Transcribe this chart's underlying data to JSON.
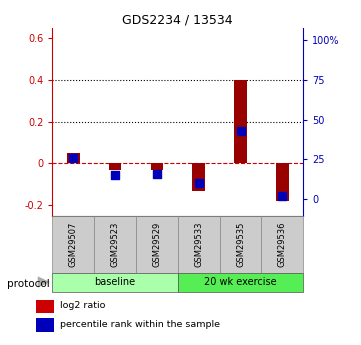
{
  "title": "GDS2234 / 13534",
  "samples": [
    "GSM29507",
    "GSM29523",
    "GSM29529",
    "GSM29533",
    "GSM29535",
    "GSM29536"
  ],
  "log2_ratio": [
    0.05,
    -0.03,
    -0.03,
    -0.13,
    0.4,
    -0.18
  ],
  "percentile_rank_pct": [
    26,
    15,
    16,
    10,
    43,
    2
  ],
  "ylim_left": [
    -0.25,
    0.65
  ],
  "ylim_right": [
    -10.4,
    108
  ],
  "yticks_left": [
    -0.2,
    0.0,
    0.2,
    0.4,
    0.6
  ],
  "yticks_left_labels": [
    "-0.2",
    "0",
    "0.2",
    "0.4",
    "0.6"
  ],
  "yticks_right": [
    0,
    25,
    50,
    75,
    100
  ],
  "yticks_right_labels": [
    "0",
    "25",
    "50",
    "75",
    "100%"
  ],
  "hlines": [
    0.2,
    0.4
  ],
  "protocol_groups": [
    {
      "label": "baseline",
      "indices": [
        0,
        1,
        2
      ],
      "color": "#aaffaa"
    },
    {
      "label": "20 wk exercise",
      "indices": [
        3,
        4,
        5
      ],
      "color": "#55ee55"
    }
  ],
  "bar_color": "#990000",
  "dot_color": "#0000bb",
  "zero_line_color": "#cc0000",
  "bar_width": 0.3,
  "dot_size": 28,
  "label_color_left": "#cc0000",
  "label_color_right": "#0000bb",
  "protocol_label": "protocol",
  "legend_items": [
    {
      "label": "log2 ratio",
      "color": "#cc0000"
    },
    {
      "label": "percentile rank within the sample",
      "color": "#0000bb"
    }
  ]
}
